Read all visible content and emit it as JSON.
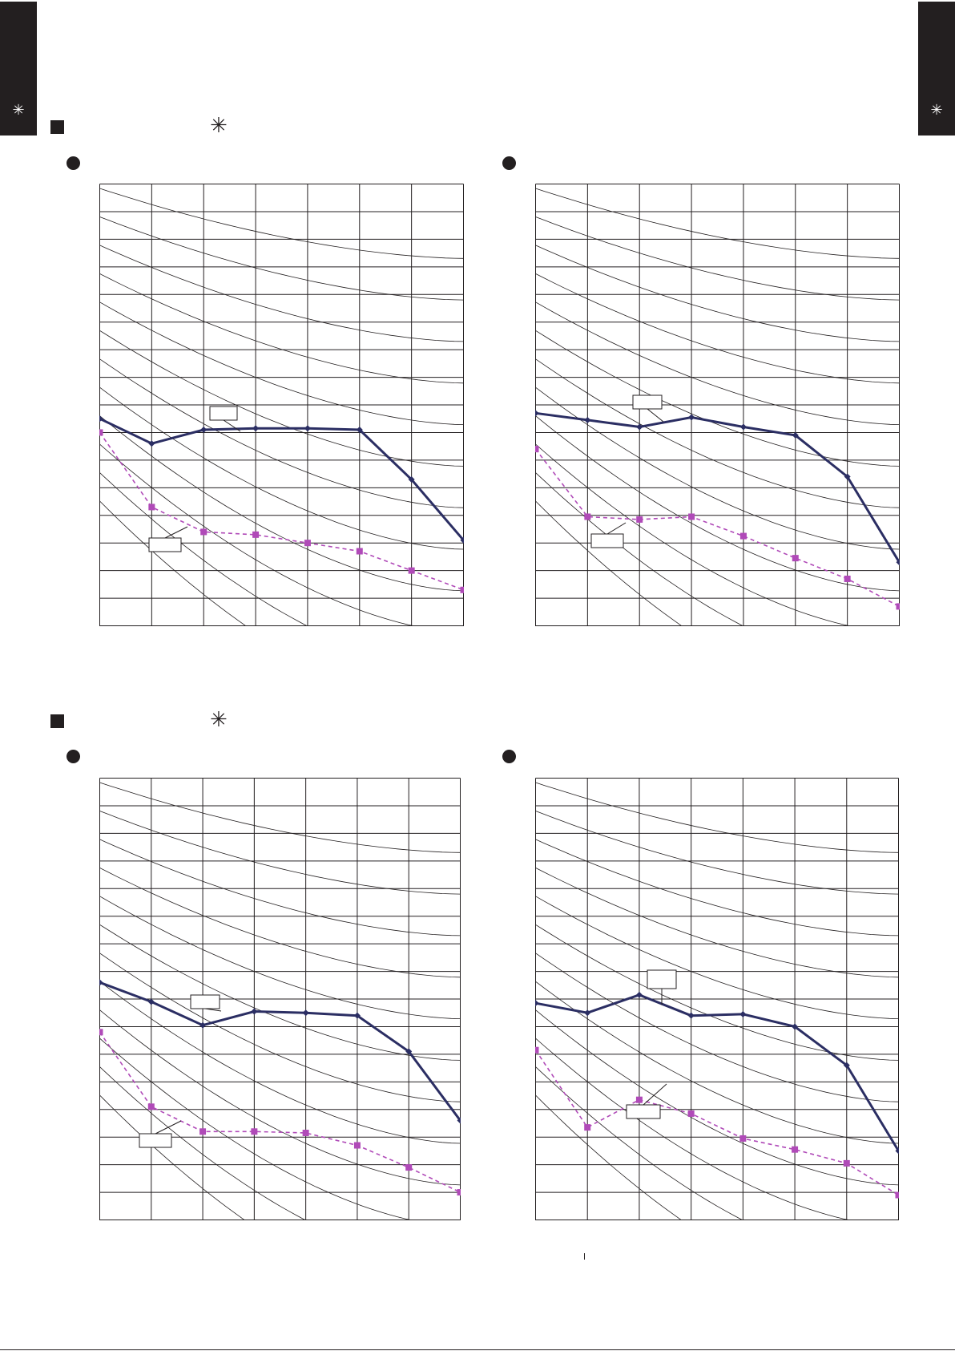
{
  "tabs": [
    {
      "label": "✳"
    },
    {
      "label": "✳"
    }
  ],
  "sections": [
    {
      "symbol": "✳"
    },
    {
      "symbol": "✳"
    }
  ],
  "colors": {
    "series_solid": "#2b2e63",
    "series_dashed": "#b04ab8",
    "grid": "#231f20"
  },
  "chart_data": [
    {
      "type": "line",
      "x": [
        0,
        1,
        2,
        3,
        4,
        5,
        6,
        7
      ],
      "xlim": [
        0,
        7
      ],
      "ylim": [
        0,
        16
      ],
      "grid": true,
      "background_curves": true,
      "series": [
        {
          "style": "solid",
          "callout": "",
          "values": [
            7.5,
            6.6,
            7.1,
            7.15,
            7.15,
            7.1,
            5.3,
            3.1
          ]
        },
        {
          "style": "dashed",
          "callout": "",
          "values": [
            7.0,
            4.3,
            3.4,
            3.3,
            3.0,
            2.7,
            2.0,
            1.3
          ]
        }
      ]
    },
    {
      "type": "line",
      "x": [
        0,
        1,
        2,
        3,
        4,
        5,
        6,
        7
      ],
      "xlim": [
        0,
        7
      ],
      "ylim": [
        0,
        16
      ],
      "grid": true,
      "background_curves": true,
      "series": [
        {
          "style": "solid",
          "callout": "",
          "values": [
            7.7,
            7.45,
            7.2,
            7.55,
            7.2,
            6.9,
            5.4,
            2.3
          ]
        },
        {
          "style": "dashed",
          "callout": "",
          "values": [
            6.4,
            3.95,
            3.85,
            3.95,
            3.25,
            2.45,
            1.7,
            0.7
          ]
        }
      ]
    },
    {
      "type": "line",
      "x": [
        0,
        1,
        2,
        3,
        4,
        5,
        6,
        7
      ],
      "xlim": [
        0,
        7
      ],
      "ylim": [
        0,
        16
      ],
      "grid": true,
      "background_curves": true,
      "series": [
        {
          "style": "solid",
          "callout": "",
          "values": [
            8.6,
            7.9,
            7.05,
            7.55,
            7.5,
            7.4,
            6.1,
            3.6
          ]
        },
        {
          "style": "dashed",
          "callout": "",
          "values": [
            6.8,
            4.1,
            3.2,
            3.2,
            3.15,
            2.7,
            1.9,
            1.0
          ]
        }
      ]
    },
    {
      "type": "line",
      "x": [
        0,
        1,
        2,
        3,
        4,
        5,
        6,
        7
      ],
      "xlim": [
        0,
        7
      ],
      "ylim": [
        0,
        16
      ],
      "grid": true,
      "background_curves": true,
      "series": [
        {
          "style": "solid",
          "callout": "",
          "values": [
            7.85,
            7.5,
            8.15,
            7.4,
            7.45,
            7.0,
            5.6,
            2.5
          ]
        },
        {
          "style": "dashed",
          "callout": "",
          "values": [
            6.15,
            3.35,
            4.35,
            3.85,
            2.95,
            2.55,
            2.05,
            0.9
          ]
        }
      ]
    }
  ]
}
